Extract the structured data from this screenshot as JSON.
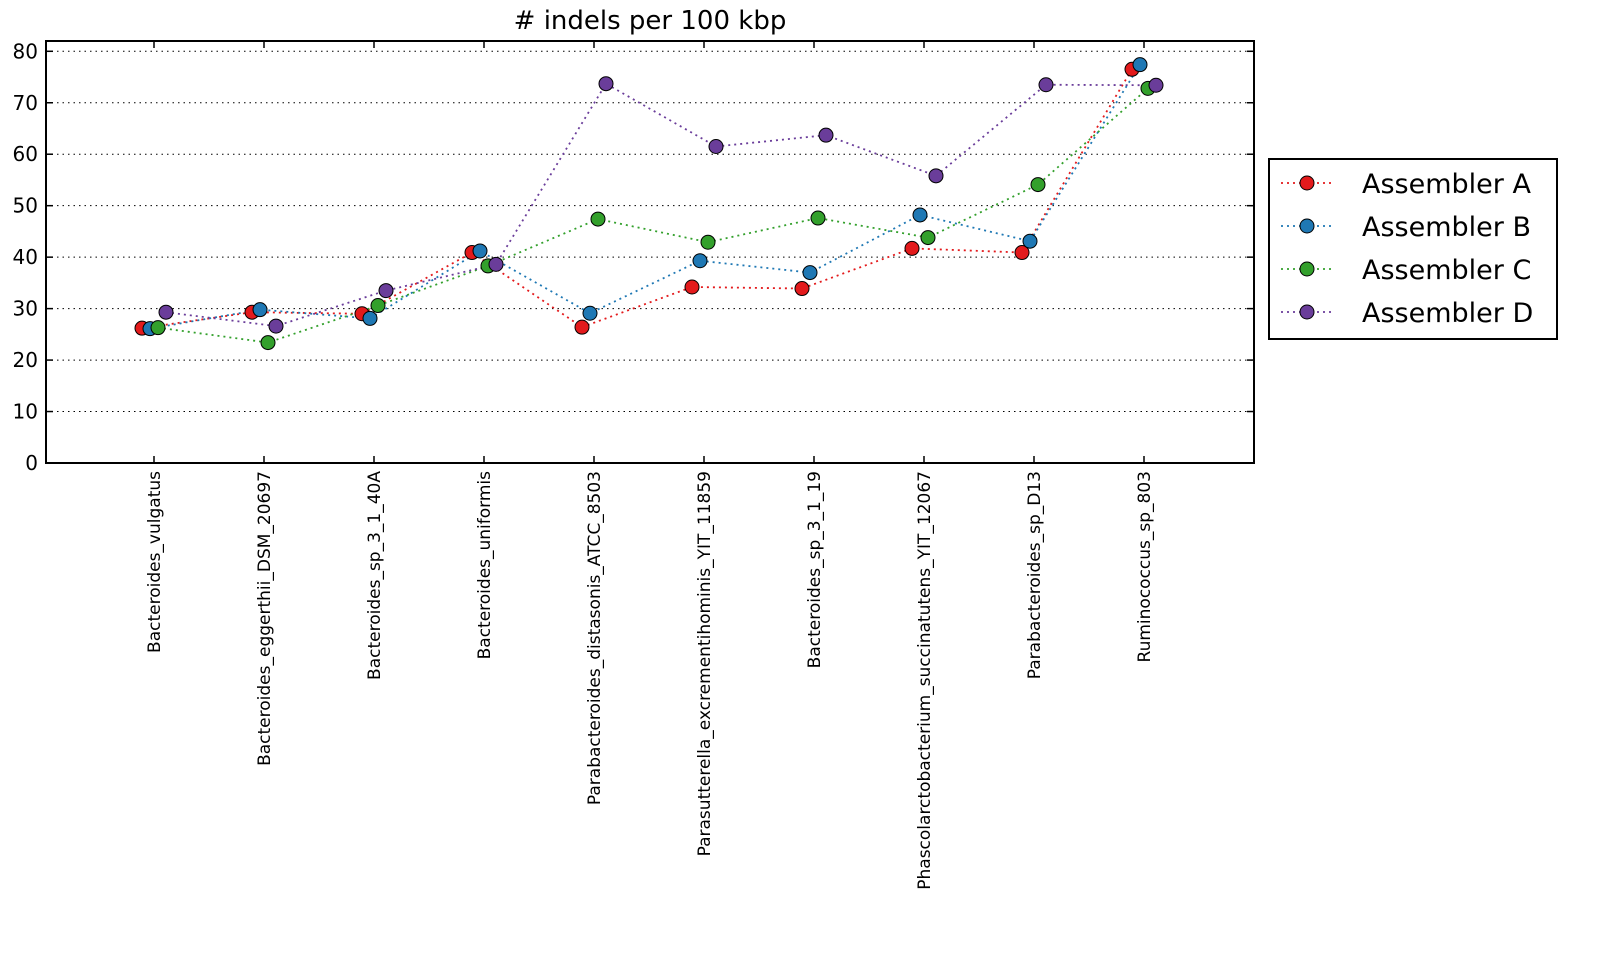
{
  "chart_data": {
    "type": "line",
    "title": "# indels per 100 kbp",
    "xlabel": "",
    "ylabel": "",
    "ylim": [
      0,
      82
    ],
    "yticks": [
      0,
      10,
      20,
      30,
      40,
      50,
      60,
      70,
      80
    ],
    "grid": true,
    "line_style": "dotted",
    "legend_position": "right",
    "categories": [
      "Bacteroides_vulgatus",
      "Bacteroides_eggerthii_DSM_20697",
      "Bacteroides_sp_3_1_40A",
      "Bacteroides_uniformis",
      "Parabacteroides_distasonis_ATCC_8503",
      "Parasutterella_excrementihominis_YIT_11859",
      "Bacteroides_sp_3_1_19",
      "Phascolarctobacterium_succinatutens_YIT_12067",
      "Parabacteroides_sp_D13",
      "Ruminococcus_sp_803"
    ],
    "series": [
      {
        "name": "Assembler A",
        "color": "#e31a1c",
        "values": [
          26.2,
          29.3,
          29.0,
          40.9,
          26.4,
          34.2,
          33.9,
          41.7,
          40.9,
          76.5
        ]
      },
      {
        "name": "Assembler B",
        "color": "#1f78b4",
        "values": [
          26.1,
          29.8,
          28.1,
          41.2,
          29.1,
          39.3,
          37.0,
          48.2,
          43.1,
          77.4
        ]
      },
      {
        "name": "Assembler C",
        "color": "#33a02c",
        "values": [
          26.3,
          23.4,
          30.6,
          38.3,
          47.4,
          42.9,
          47.6,
          43.8,
          54.1,
          72.8
        ]
      },
      {
        "name": "Assembler D",
        "color": "#6a3d9a",
        "values": [
          29.3,
          26.6,
          33.5,
          38.6,
          73.7,
          61.5,
          63.7,
          55.8,
          73.5,
          73.4
        ]
      }
    ]
  }
}
